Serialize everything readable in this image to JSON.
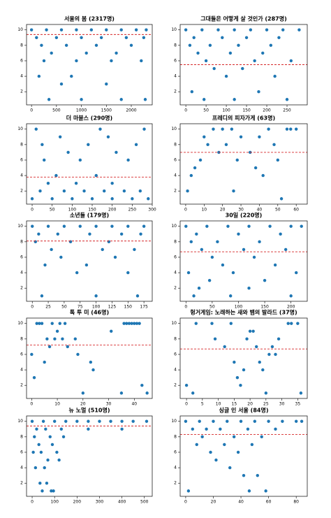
{
  "chart_data": [
    {
      "type": "scatter",
      "title": "서울의 봄 (2317명)",
      "color": "#1f77b4",
      "hline": 9.4,
      "hline_color": "#d62728",
      "x": [
        0,
        300,
        600,
        900,
        1200,
        1500,
        1800,
        2100,
        2300,
        100,
        500,
        1000,
        1400,
        1900,
        2250,
        200,
        700,
        1300,
        2000,
        400,
        1100,
        1700,
        250,
        900,
        1600,
        2200,
        150,
        800,
        600,
        1500,
        350,
        1000,
        1800,
        2280
      ],
      "values": [
        10,
        10,
        10,
        10,
        10,
        10,
        10,
        10,
        10,
        9,
        9,
        9,
        9,
        9,
        9,
        8,
        8,
        8,
        8,
        7,
        7,
        7,
        6,
        6,
        6,
        6,
        4,
        4,
        3,
        3,
        1,
        1,
        1,
        1
      ],
      "xlim": [
        -100,
        2420
      ],
      "xticks": [
        0,
        500,
        1000,
        1500,
        2000
      ],
      "ylim": [
        0.3,
        10.7
      ],
      "yticks": [
        2,
        4,
        6,
        8,
        10
      ]
    },
    {
      "type": "scatter",
      "title": "그대들은 어떻게 살 것인가 (287명)",
      "color": "#1f77b4",
      "hline": 5.5,
      "hline_color": "#d62728",
      "x": [
        0,
        40,
        80,
        120,
        160,
        200,
        240,
        280,
        20,
        90,
        150,
        230,
        10,
        60,
        130,
        210,
        30,
        110,
        190,
        50,
        170,
        260,
        70,
        140,
        100,
        220,
        15,
        180,
        45,
        120,
        250
      ],
      "values": [
        10,
        10,
        10,
        10,
        10,
        10,
        10,
        10,
        9,
        9,
        9,
        9,
        8,
        8,
        8,
        8,
        7,
        7,
        7,
        6,
        6,
        6,
        5,
        5,
        4,
        4,
        2,
        2,
        1,
        1,
        1
      ],
      "xlim": [
        -14,
        300
      ],
      "xticks": [
        0,
        50,
        100,
        150,
        200,
        250
      ],
      "ylim": [
        0.3,
        10.7
      ],
      "yticks": [
        2,
        4,
        6,
        8,
        10
      ]
    },
    {
      "type": "scatter",
      "title": "더 마블스 (290명)",
      "color": "#1f77b4",
      "hline": 3.8,
      "hline_color": "#d62728",
      "x": [
        0,
        50,
        100,
        150,
        200,
        250,
        290,
        20,
        80,
        130,
        180,
        230,
        270,
        40,
        110,
        200,
        60,
        160,
        30,
        120,
        240,
        90,
        210,
        25,
        140,
        260,
        70,
        190,
        10,
        170,
        280
      ],
      "values": [
        1,
        1,
        1,
        1,
        1,
        1,
        1,
        2,
        2,
        2,
        2,
        2,
        2,
        3,
        3,
        3,
        4,
        4,
        6,
        6,
        6,
        7,
        7,
        8,
        8,
        8,
        9,
        9,
        10,
        10,
        10
      ],
      "xlim": [
        -14,
        300
      ],
      "xticks": [
        0,
        50,
        100,
        150,
        200,
        250,
        300
      ],
      "ylim": [
        0.3,
        10.7
      ],
      "yticks": [
        2,
        4,
        6,
        8,
        10
      ]
    },
    {
      "type": "scatter",
      "title": "프레디의 피자가게 (63명)",
      "color": "#1f77b4",
      "hline": 7.0,
      "hline_color": "#d62728",
      "x": [
        15,
        20,
        25,
        45,
        55,
        57,
        60,
        10,
        30,
        40,
        12,
        22,
        48,
        18,
        35,
        8,
        28,
        50,
        5,
        38,
        3,
        42,
        1,
        26,
        52
      ],
      "values": [
        10,
        10,
        10,
        10,
        10,
        10,
        10,
        9,
        9,
        9,
        8,
        8,
        8,
        7,
        7,
        6,
        6,
        6,
        5,
        5,
        4,
        4,
        2,
        2,
        1
      ],
      "xlim": [
        -3,
        66
      ],
      "xticks": [
        0,
        10,
        20,
        30,
        40,
        50,
        60
      ],
      "ylim": [
        0.3,
        10.7
      ],
      "yticks": [
        2,
        4,
        6,
        8,
        10
      ]
    },
    {
      "type": "scatter",
      "title": "소년들 (179명)",
      "color": "#1f77b4",
      "hline": 8.1,
      "hline_color": "#d62728",
      "x": [
        0,
        25,
        50,
        75,
        100,
        125,
        150,
        175,
        10,
        40,
        90,
        140,
        170,
        5,
        60,
        120,
        30,
        110,
        160,
        45,
        130,
        20,
        85,
        70,
        150,
        15,
        100,
        165
      ],
      "values": [
        10,
        10,
        10,
        10,
        10,
        10,
        10,
        10,
        9,
        9,
        9,
        9,
        9,
        8,
        8,
        8,
        7,
        7,
        7,
        6,
        6,
        5,
        5,
        4,
        4,
        1,
        1,
        1
      ],
      "xlim": [
        -9,
        188
      ],
      "xticks": [
        0,
        25,
        50,
        75,
        100,
        125,
        150,
        175
      ],
      "ylim": [
        0.3,
        10.7
      ],
      "yticks": [
        2,
        4,
        6,
        8,
        10
      ]
    },
    {
      "type": "scatter",
      "title": "30일 (220명)",
      "color": "#1f77b4",
      "hline": 6.7,
      "hline_color": "#d62728",
      "x": [
        0,
        40,
        80,
        120,
        160,
        200,
        220,
        20,
        100,
        180,
        10,
        60,
        140,
        30,
        110,
        190,
        50,
        130,
        70,
        170,
        5,
        90,
        210,
        45,
        150,
        25,
        120,
        15,
        85,
        200
      ],
      "values": [
        10,
        10,
        10,
        10,
        10,
        10,
        10,
        9,
        9,
        9,
        8,
        8,
        8,
        7,
        7,
        7,
        6,
        6,
        5,
        5,
        4,
        4,
        4,
        3,
        3,
        2,
        2,
        1,
        1,
        1
      ],
      "xlim": [
        -11,
        231
      ],
      "xticks": [
        0,
        50,
        100,
        150,
        200
      ],
      "ylim": [
        0.3,
        10.7
      ],
      "yticks": [
        2,
        4,
        6,
        8,
        10
      ]
    },
    {
      "type": "scatter",
      "title": "톡 투 미 (46명)",
      "color": "#1f77b4",
      "hline": 7.2,
      "hline_color": "#d62728",
      "x": [
        2,
        3,
        4,
        8,
        11,
        13,
        36,
        37,
        38,
        39,
        40,
        41,
        42,
        10,
        31,
        6,
        9,
        12,
        17,
        7,
        14,
        0,
        18,
        5,
        23,
        24,
        1,
        35,
        20,
        45,
        43
      ],
      "values": [
        10,
        10,
        10,
        10,
        10,
        10,
        10,
        10,
        10,
        10,
        10,
        10,
        10,
        9,
        9,
        8,
        8,
        8,
        8,
        7,
        7,
        6,
        6,
        5,
        5,
        4,
        3,
        1,
        1,
        1,
        2
      ],
      "xlim": [
        -2,
        47
      ],
      "xticks": [
        0,
        10,
        20,
        30,
        40
      ],
      "ylim": [
        0.3,
        10.7
      ],
      "yticks": [
        2,
        4,
        6,
        8,
        10
      ]
    },
    {
      "type": "scatter",
      "title": "헝거게임: 노래하는 새와 뱀의 발라드 (37명)",
      "color": "#1f77b4",
      "hline": 6.7,
      "hline_color": "#d62728",
      "x": [
        3,
        8,
        14,
        32,
        33,
        35,
        20,
        21,
        9,
        19,
        29,
        12,
        22,
        27,
        26,
        28,
        15,
        23,
        18,
        24,
        16,
        0,
        17,
        2,
        25,
        36
      ],
      "values": [
        10,
        10,
        10,
        10,
        10,
        10,
        9,
        9,
        8,
        8,
        8,
        7,
        7,
        7,
        6,
        6,
        5,
        5,
        4,
        4,
        3,
        2,
        2,
        1,
        1,
        1
      ],
      "xlim": [
        -2,
        38
      ],
      "xticks": [
        0,
        5,
        10,
        15,
        20,
        25,
        30,
        35
      ],
      "ylim": [
        0.3,
        10.7
      ],
      "yticks": [
        2,
        4,
        6,
        8,
        10
      ]
    },
    {
      "type": "scatter",
      "title": "뉴 노멀 (510명)",
      "color": "#1f77b4",
      "hline": 9.4,
      "hline_color": "#d62728",
      "x": [
        0,
        50,
        100,
        150,
        200,
        250,
        300,
        350,
        400,
        450,
        510,
        20,
        60,
        130,
        250,
        400,
        10,
        80,
        140,
        30,
        90,
        5,
        40,
        110,
        70,
        120,
        15,
        55,
        35,
        65,
        45,
        85,
        95
      ],
      "values": [
        10,
        10,
        10,
        10,
        10,
        10,
        10,
        10,
        10,
        10,
        10,
        9,
        9,
        9,
        9,
        9,
        8,
        8,
        8,
        7,
        7,
        6,
        6,
        6,
        5,
        5,
        4,
        4,
        2,
        2,
        1,
        1,
        1
      ],
      "xlim": [
        -25,
        535
      ],
      "xticks": [
        0,
        100,
        200,
        300,
        400,
        500
      ],
      "ylim": [
        0.3,
        10.7
      ],
      "yticks": [
        2,
        4,
        6,
        8,
        10
      ]
    },
    {
      "type": "scatter",
      "title": "싱글 인 서울 (84명)",
      "color": "#1f77b4",
      "hline": 8.3,
      "hline_color": "#d62728",
      "x": [
        0,
        10,
        20,
        30,
        40,
        50,
        60,
        70,
        80,
        84,
        5,
        15,
        25,
        45,
        65,
        12,
        35,
        55,
        8,
        28,
        48,
        18,
        38,
        22,
        32,
        42,
        52,
        2,
        46,
        58
      ],
      "values": [
        10,
        10,
        10,
        10,
        10,
        10,
        10,
        10,
        10,
        10,
        9,
        9,
        9,
        9,
        9,
        8,
        8,
        8,
        7,
        7,
        7,
        6,
        6,
        5,
        4,
        3,
        3,
        1,
        1,
        1
      ],
      "xlim": [
        -4,
        88
      ],
      "xticks": [
        0,
        20,
        40,
        60,
        80
      ],
      "ylim": [
        0.3,
        10.7
      ],
      "yticks": [
        2,
        4,
        6,
        8,
        10
      ]
    }
  ]
}
